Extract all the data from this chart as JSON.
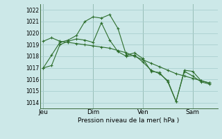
{
  "bg_color": "#cce8e8",
  "grid_color": "#aacfcf",
  "line_color": "#2d6e2d",
  "xlabel_text": "Pression niveau de la mer( hPa )",
  "ylim": [
    1013.5,
    1022.5
  ],
  "yticks": [
    1014,
    1015,
    1016,
    1017,
    1018,
    1019,
    1020,
    1021,
    1022
  ],
  "day_labels": [
    "Jeu",
    "Dim",
    "Ven",
    "Sam"
  ],
  "day_positions": [
    0,
    3,
    6,
    9
  ],
  "xlim": [
    -0.2,
    10.5
  ],
  "line1_x": [
    0,
    0.5,
    1,
    1.5,
    2,
    2.5,
    3,
    3.5,
    4,
    4.5,
    5,
    5.5,
    6,
    6.5,
    7,
    7.5,
    8,
    8.5,
    9,
    9.5,
    10
  ],
  "line1_y": [
    1017.0,
    1018.1,
    1019.2,
    1019.4,
    1019.8,
    1021.0,
    1021.4,
    1021.3,
    1021.6,
    1020.4,
    1018.1,
    1018.3,
    1017.8,
    1016.7,
    1016.6,
    1015.8,
    1014.1,
    1016.8,
    1016.7,
    1015.9,
    1015.7
  ],
  "line2_x": [
    0,
    0.5,
    1,
    1.5,
    2,
    2.5,
    3,
    3.5,
    4,
    4.5,
    5,
    5.5,
    6,
    6.5,
    7,
    7.5,
    8,
    8.5,
    9,
    9.5,
    10
  ],
  "line2_y": [
    1019.3,
    1019.6,
    1019.3,
    1019.2,
    1019.1,
    1019.0,
    1018.9,
    1018.8,
    1018.7,
    1018.5,
    1018.3,
    1018.0,
    1017.7,
    1017.4,
    1017.1,
    1016.8,
    1016.5,
    1016.3,
    1016.1,
    1015.9,
    1015.7
  ],
  "line3_x": [
    0,
    0.5,
    1,
    1.5,
    2,
    2.5,
    3,
    3.5,
    4,
    4.5,
    5,
    5.5,
    6,
    6.5,
    7,
    7.5,
    8,
    8.5,
    9,
    9.5,
    10
  ],
  "line3_y": [
    1017.0,
    1017.2,
    1019.0,
    1019.3,
    1019.5,
    1019.4,
    1019.2,
    1020.9,
    1019.4,
    1018.4,
    1018.0,
    1018.1,
    1017.5,
    1016.8,
    1016.5,
    1015.9,
    1014.1,
    1016.7,
    1016.3,
    1015.8,
    1015.6
  ]
}
